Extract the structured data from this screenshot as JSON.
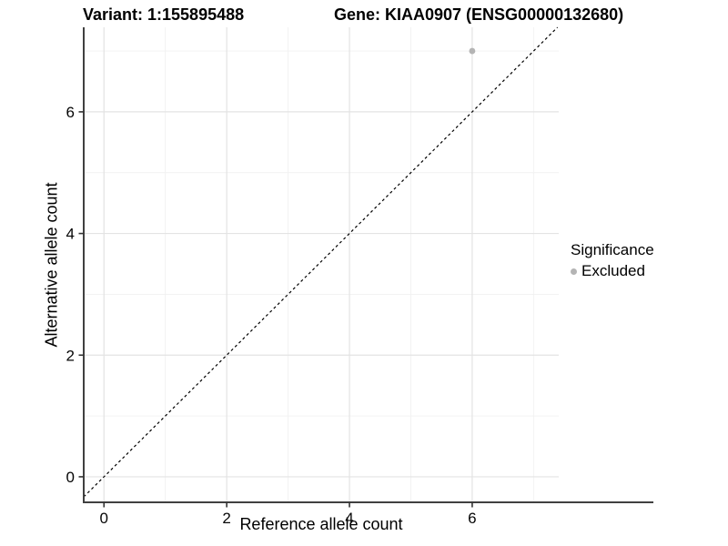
{
  "chart_data": {
    "type": "scatter",
    "titles": [
      "Variant: 1:155895488",
      "Gene: KIAA0907 (ENSG00000132680)"
    ],
    "xlabel": "Reference allele count",
    "ylabel": "Alternative allele count",
    "xlim": [
      -0.33,
      7.41
    ],
    "ylim": [
      -0.42,
      7.39
    ],
    "xticks": [
      0,
      2,
      4,
      6
    ],
    "yticks": [
      0,
      2,
      4,
      6
    ],
    "x_minor_ticks": [
      1,
      3,
      5,
      7
    ],
    "y_minor_ticks": [
      1,
      3,
      5,
      7
    ],
    "grid": "major and minor gridlines, white panel",
    "points": [
      {
        "x": 6,
        "y": 7,
        "significance": "Excluded"
      }
    ],
    "reference_line": {
      "type": "identity",
      "slope": 1,
      "intercept": 0,
      "style": "dashed"
    },
    "legend": {
      "title": "Significance",
      "position": "right",
      "entries": [
        {
          "label": "Excluded",
          "color": "#b4b4b4",
          "marker": "circle"
        }
      ]
    }
  },
  "colors": {
    "point": "#b4b4b4",
    "grid_major": "#e3e3e3",
    "grid_minor": "#f1f1f1",
    "axis_line": "#404040",
    "tick_mark": "#333333",
    "tick_label": "#050505",
    "dashed_line": "#000000",
    "background": "#ffffff"
  }
}
